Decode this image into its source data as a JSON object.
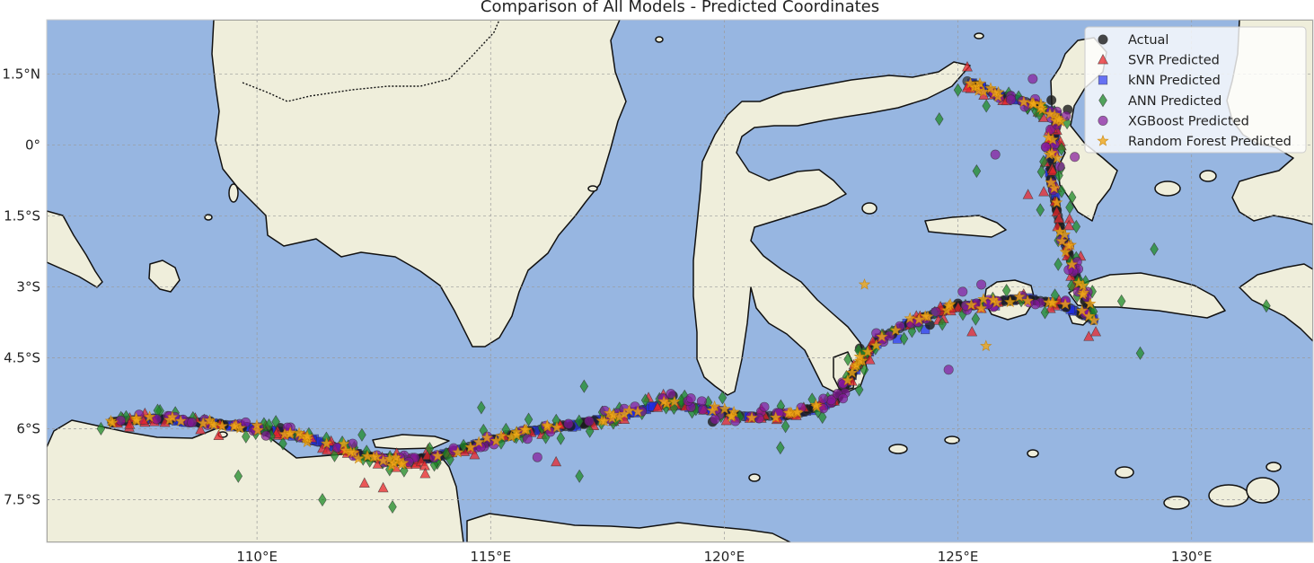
{
  "chart_data": {
    "type": "scatter",
    "title": "Comparison of All Models - Predicted Coordinates",
    "xlabel": "",
    "ylabel": "",
    "xlim": [
      105.5,
      132.6
    ],
    "ylim": [
      -8.4,
      2.65
    ],
    "projection": "PlateCarree map (lon / lat)",
    "grid": true,
    "legend_position": "top-right",
    "x_ticks": [
      {
        "value": 110,
        "label": "110°E"
      },
      {
        "value": 115,
        "label": "115°E"
      },
      {
        "value": 120,
        "label": "120°E"
      },
      {
        "value": 125,
        "label": "125°E"
      },
      {
        "value": 130,
        "label": "130°E"
      }
    ],
    "y_ticks": [
      {
        "value": 1.5,
        "label": "1.5°N"
      },
      {
        "value": 0,
        "label": "0°"
      },
      {
        "value": -1.5,
        "label": "1.5°S"
      },
      {
        "value": -3,
        "label": "3°S"
      },
      {
        "value": -4.5,
        "label": "4.5°S"
      },
      {
        "value": -6,
        "label": "6°S"
      },
      {
        "value": -7.5,
        "label": "7.5°S"
      }
    ],
    "colors": {
      "ocean": "#97b6e1",
      "land": "#efeedb",
      "grid": "#9a9a9a"
    },
    "track": [
      [
        106.9,
        -5.85
      ],
      [
        107.8,
        -5.78
      ],
      [
        108.8,
        -5.87
      ],
      [
        109.8,
        -5.96
      ],
      [
        110.6,
        -6.08
      ],
      [
        111.4,
        -6.3
      ],
      [
        112.2,
        -6.55
      ],
      [
        112.9,
        -6.7
      ],
      [
        113.8,
        -6.6
      ],
      [
        114.8,
        -6.3
      ],
      [
        115.8,
        -6.05
      ],
      [
        116.8,
        -5.92
      ],
      [
        117.8,
        -5.72
      ],
      [
        118.8,
        -5.45
      ],
      [
        119.7,
        -5.6
      ],
      [
        120.5,
        -5.75
      ],
      [
        121.5,
        -5.7
      ],
      [
        122.4,
        -5.4
      ],
      [
        122.8,
        -4.75
      ],
      [
        123.3,
        -4.1
      ],
      [
        124.0,
        -3.75
      ],
      [
        124.8,
        -3.45
      ],
      [
        125.6,
        -3.35
      ],
      [
        126.4,
        -3.25
      ],
      [
        127.2,
        -3.35
      ],
      [
        127.9,
        -3.7
      ],
      [
        127.5,
        -2.7
      ],
      [
        127.2,
        -1.8
      ],
      [
        127.0,
        -0.8
      ],
      [
        127.0,
        -0.1
      ],
      [
        127.15,
        0.6
      ],
      [
        126.7,
        0.85
      ],
      [
        125.9,
        1.05
      ],
      [
        125.2,
        1.35
      ]
    ],
    "series": [
      {
        "name": "Actual",
        "marker": "circle",
        "color": "#1a1a1a",
        "alpha": 0.8,
        "spread": 0.04,
        "x": [
          106.95,
          109.0,
          110.5,
          113.2,
          114.9,
          117.0,
          118.9,
          119.75,
          122.9,
          123.6,
          124.4,
          125.0,
          127.0,
          127.35,
          127.1
        ],
        "y": [
          -5.85,
          -5.84,
          -5.98,
          -6.7,
          -6.3,
          -5.9,
          -5.3,
          -5.85,
          -4.3,
          -4.0,
          -3.8,
          -3.35,
          0.95,
          0.75,
          0.5
        ]
      },
      {
        "name": "SVR Predicted",
        "marker": "triangle",
        "color": "#e8262b",
        "alpha": 0.75,
        "spread": 0.32,
        "x": [
          112.7,
          112.3,
          125.2,
          127.8,
          126.5,
          125.3,
          116.4,
          113.6,
          121.7,
          127.95
        ],
        "y": [
          -7.25,
          -7.15,
          1.65,
          -4.05,
          -1.05,
          -3.95,
          -6.7,
          -6.95,
          -5.55,
          -3.95
        ]
      },
      {
        "name": "kNN Predicted",
        "marker": "square",
        "color": "#1f2cf0",
        "alpha": 0.65,
        "spread": 0.06,
        "x": [
          124.3,
          125.8,
          123.7
        ],
        "y": [
          -3.9,
          -3.4,
          -4.1
        ]
      },
      {
        "name": "ANN Predicted",
        "marker": "diamond",
        "color": "#1e8a27",
        "alpha": 0.75,
        "spread": 0.55,
        "x": [
          111.4,
          112.9,
          109.6,
          116.9,
          124.6,
          129.2,
          128.9,
          131.6,
          125.4,
          121.2,
          116.5,
          117.0,
          114.8,
          128.5
        ],
        "y": [
          -7.5,
          -7.65,
          -7.0,
          -7.0,
          0.55,
          -2.2,
          -4.4,
          -3.4,
          -0.55,
          -6.4,
          -6.2,
          -5.1,
          -5.55,
          -3.3
        ]
      },
      {
        "name": "XGBoost Predicted",
        "marker": "circle",
        "color": "#84179a",
        "alpha": 0.7,
        "spread": 0.28,
        "x": [
          125.5,
          126.6,
          125.1,
          116.0,
          119.8,
          124.8,
          127.5,
          125.8
        ],
        "y": [
          -2.95,
          1.4,
          -3.1,
          -6.6,
          -5.8,
          -4.75,
          -0.25,
          -0.2
        ]
      },
      {
        "name": "Random Forest Predicted",
        "marker": "star",
        "color": "#f0a818",
        "alpha": 0.8,
        "spread": 0.16,
        "x": [
          123.0,
          125.6,
          112.5,
          114.3,
          125.7
        ],
        "y": [
          -2.95,
          -4.25,
          -6.6,
          -6.5,
          1.2
        ]
      }
    ]
  }
}
